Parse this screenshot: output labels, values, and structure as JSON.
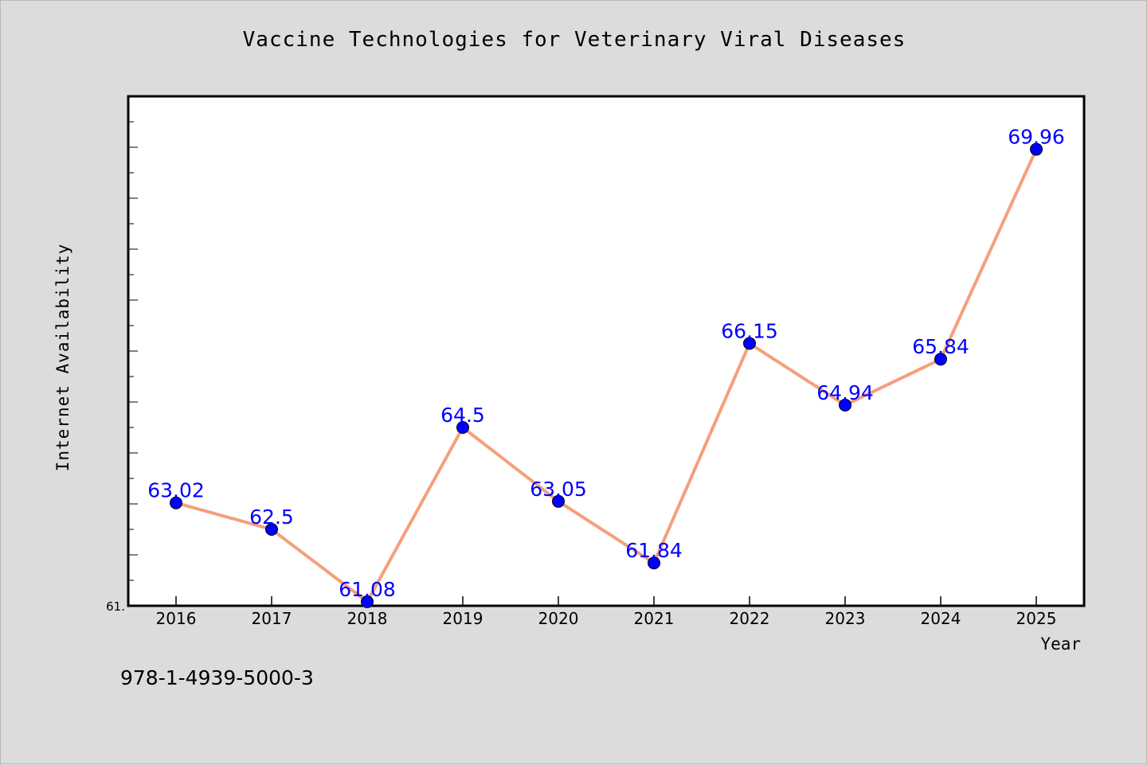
{
  "chart_data": {
    "type": "line",
    "title": "Vaccine Technologies for Veterinary Viral Diseases",
    "xlabel": "Year",
    "ylabel": "Internet Availability",
    "x": [
      "2016",
      "2017",
      "2018",
      "2019",
      "2020",
      "2021",
      "2022",
      "2023",
      "2024",
      "2025"
    ],
    "series": [
      {
        "values": [
          63.02,
          62.5,
          61.08,
          64.5,
          63.05,
          61.84,
          66.15,
          64.94,
          65.84,
          69.96
        ],
        "labels": [
          "63.02",
          "62.5",
          "61.08",
          "64.5",
          "63.05",
          "61.84",
          "66.15",
          "64.94",
          "65.84",
          "69.96"
        ]
      }
    ],
    "ylim": [
      61.0,
      71.0
    ],
    "y_tick_label": "61.",
    "grid": false,
    "legend": "none",
    "colors": {
      "line": "#f4a07c",
      "marker": "#0000ff",
      "data_label": "#0000ff",
      "plot_bg": "#ffffff",
      "page_bg": "#dcdcdc"
    }
  },
  "footer": {
    "code": "978-1-4939-5000-3"
  }
}
